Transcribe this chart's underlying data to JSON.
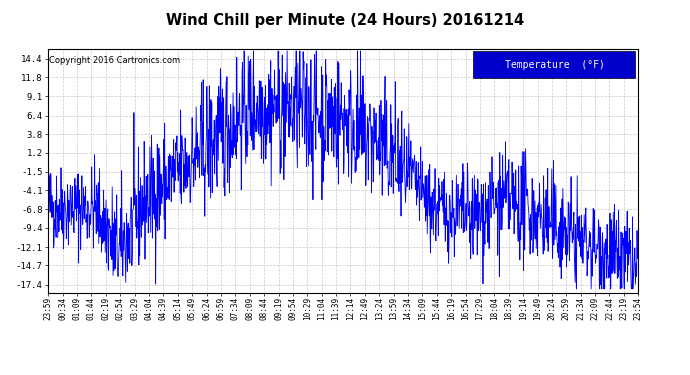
{
  "title": "Wind Chill per Minute (24 Hours) 20161214",
  "copyright": "Copyright 2016 Cartronics.com",
  "legend_label": "Temperature  (°F)",
  "yticks": [
    14.4,
    11.8,
    9.1,
    6.4,
    3.8,
    1.2,
    -1.5,
    -4.1,
    -6.8,
    -9.4,
    -12.1,
    -14.7,
    -17.4
  ],
  "ylim": [
    -18.5,
    15.8
  ],
  "background_color": "#ffffff",
  "plot_bg_color": "#ffffff",
  "line_color": "#0000ff",
  "grid_color": "#bbbbbb",
  "title_color": "#000000",
  "copyright_color": "#000000",
  "legend_bg": "#0000cc",
  "legend_text_color": "#ffffff",
  "num_points": 1441,
  "seed": 42,
  "xtick_labels": [
    "23:59",
    "00:34",
    "01:09",
    "01:44",
    "02:19",
    "02:54",
    "03:29",
    "04:04",
    "04:39",
    "05:14",
    "05:49",
    "06:24",
    "06:59",
    "07:34",
    "08:09",
    "08:44",
    "09:19",
    "09:54",
    "10:29",
    "11:04",
    "11:39",
    "12:14",
    "12:49",
    "13:24",
    "13:59",
    "14:34",
    "15:09",
    "15:44",
    "16:19",
    "16:54",
    "17:29",
    "18:04",
    "18:39",
    "19:14",
    "19:49",
    "20:24",
    "20:59",
    "21:34",
    "22:09",
    "22:44",
    "23:19",
    "23:54"
  ]
}
